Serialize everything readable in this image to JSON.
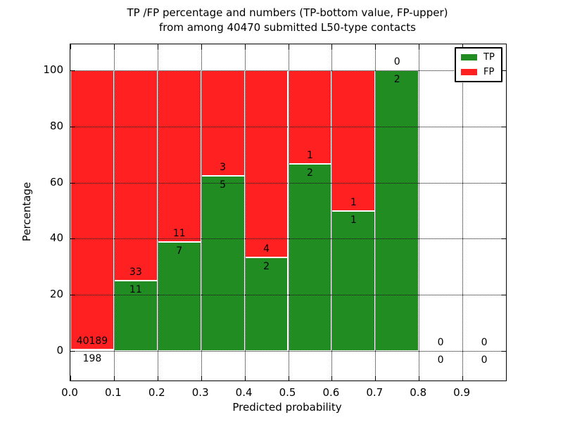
{
  "chart_data": {
    "type": "bar",
    "stacked": true,
    "bars_normalized_to": 100,
    "title_lines": [
      "TP /FP percentage and numbers (TP-bottom value, FP-upper)",
      "from among 40470 submitted L50-type contacts"
    ],
    "xlabel": "Predicted probability",
    "ylabel": "Percentage",
    "xlim": [
      0.0,
      1.0
    ],
    "ylim": [
      -10.5,
      109.3
    ],
    "x_tick_values": [
      0.0,
      0.1,
      0.2,
      0.3,
      0.4,
      0.5,
      0.6,
      0.7,
      0.8,
      0.9
    ],
    "x_tick_labels": [
      "0.0",
      "0.1",
      "0.2",
      "0.3",
      "0.4",
      "0.5",
      "0.6",
      "0.7",
      "0.8",
      "0.9"
    ],
    "y_tick_values": [
      0,
      20,
      40,
      60,
      80,
      100
    ],
    "y_tick_labels": [
      "0",
      "20",
      "40",
      "60",
      "80",
      "100"
    ],
    "grid": "dotted",
    "colors": {
      "tp": "#218c21",
      "fp": "#ff2121",
      "grid": "#000000",
      "spine": "#000000",
      "text": "#000000",
      "bar_edge": "#ffffff",
      "background": "#ffffff"
    },
    "legend": {
      "position": "upper-right",
      "entries": [
        {
          "label": "TP",
          "color_key": "tp"
        },
        {
          "label": "FP",
          "color_key": "fp"
        }
      ]
    },
    "categories": [
      "0.0-0.1",
      "0.1-0.2",
      "0.2-0.3",
      "0.3-0.4",
      "0.4-0.5",
      "0.5-0.6",
      "0.6-0.7",
      "0.7-0.8",
      "0.8-0.9",
      "0.9-1.0"
    ],
    "bins": [
      {
        "x0": 0.0,
        "x1": 0.1,
        "tp": 198,
        "fp": 40189
      },
      {
        "x0": 0.1,
        "x1": 0.2,
        "tp": 11,
        "fp": 33
      },
      {
        "x0": 0.2,
        "x1": 0.3,
        "tp": 7,
        "fp": 11
      },
      {
        "x0": 0.3,
        "x1": 0.4,
        "tp": 5,
        "fp": 3
      },
      {
        "x0": 0.4,
        "x1": 0.5,
        "tp": 2,
        "fp": 4
      },
      {
        "x0": 0.5,
        "x1": 0.6,
        "tp": 2,
        "fp": 1
      },
      {
        "x0": 0.6,
        "x1": 0.7,
        "tp": 1,
        "fp": 1
      },
      {
        "x0": 0.7,
        "x1": 0.8,
        "tp": 2,
        "fp": 0
      },
      {
        "x0": 0.8,
        "x1": 0.9,
        "tp": 0,
        "fp": 0
      },
      {
        "x0": 0.9,
        "x1": 1.0,
        "tp": 0,
        "fp": 0
      }
    ]
  }
}
